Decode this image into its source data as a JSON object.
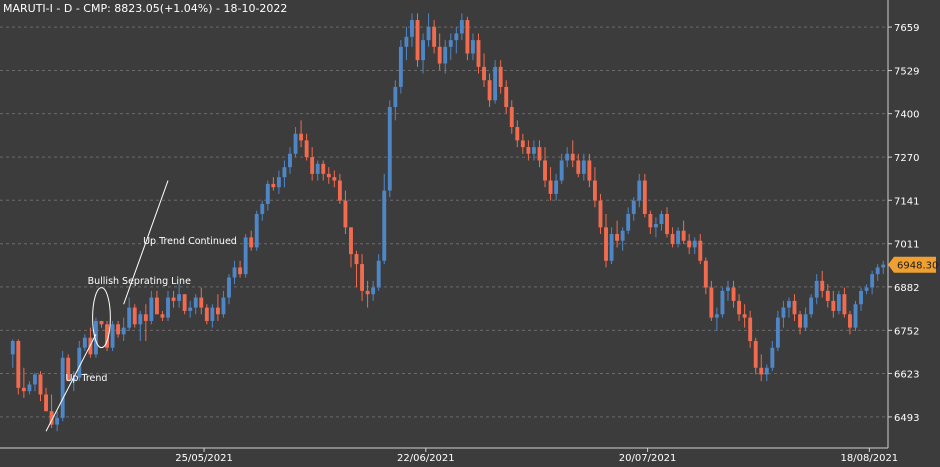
{
  "chart_data": {
    "type": "candlestick",
    "title": "MARUTI-I - D - CMP: 8823.05(+1.04%) - 18-10-2022",
    "ylim": [
      6400,
      7740
    ],
    "y_ticks": [
      6493,
      6623,
      6752,
      6882,
      7011,
      7141,
      7270,
      7400,
      7529,
      7659
    ],
    "x_tick_labels": [
      {
        "label": "25/05/2021",
        "index": 35
      },
      {
        "label": "22/06/2021",
        "index": 75
      },
      {
        "label": "20/07/2021",
        "index": 115
      },
      {
        "label": "18/08/2021",
        "index": 155
      }
    ],
    "current_price_label": "6948.30",
    "current_price": 6948.3,
    "grid": "horizontal-dashed",
    "colors": {
      "background": "#3c3c3c",
      "up": "#4f86c6",
      "down": "#f26b4f",
      "grid": "#6a6a6a",
      "text": "#ffffff",
      "price_tag": "#f0a030",
      "annotation": "#ffffff"
    },
    "candles": [
      [
        6680,
        6725,
        6640,
        6720
      ],
      [
        6720,
        6725,
        6560,
        6580
      ],
      [
        6580,
        6640,
        6550,
        6570
      ],
      [
        6570,
        6600,
        6560,
        6590
      ],
      [
        6590,
        6625,
        6570,
        6620
      ],
      [
        6620,
        6630,
        6540,
        6560
      ],
      [
        6560,
        6580,
        6510,
        6510
      ],
      [
        6510,
        6560,
        6460,
        6470
      ],
      [
        6470,
        6510,
        6450,
        6490
      ],
      [
        6490,
        6690,
        6480,
        6670
      ],
      [
        6670,
        6680,
        6600,
        6600
      ],
      [
        6600,
        6630,
        6570,
        6610
      ],
      [
        6610,
        6720,
        6600,
        6700
      ],
      [
        6700,
        6740,
        6690,
        6730
      ],
      [
        6730,
        6760,
        6670,
        6680
      ],
      [
        6680,
        6790,
        6670,
        6780
      ],
      [
        6780,
        6780,
        6760,
        6770
      ],
      [
        6770,
        6780,
        6690,
        6700
      ],
      [
        6700,
        6780,
        6690,
        6770
      ],
      [
        6770,
        6780,
        6730,
        6740
      ],
      [
        6740,
        6790,
        6720,
        6760
      ],
      [
        6760,
        6850,
        6750,
        6820
      ],
      [
        6820,
        6830,
        6760,
        6770
      ],
      [
        6770,
        6810,
        6720,
        6800
      ],
      [
        6800,
        6830,
        6720,
        6780
      ],
      [
        6780,
        6870,
        6770,
        6850
      ],
      [
        6850,
        6870,
        6800,
        6800
      ],
      [
        6800,
        6810,
        6780,
        6790
      ],
      [
        6790,
        6870,
        6780,
        6850
      ],
      [
        6850,
        6870,
        6820,
        6840
      ],
      [
        6840,
        6890,
        6820,
        6860
      ],
      [
        6860,
        6860,
        6800,
        6810
      ],
      [
        6810,
        6840,
        6790,
        6820
      ],
      [
        6820,
        6860,
        6800,
        6850
      ],
      [
        6850,
        6880,
        6800,
        6820
      ],
      [
        6820,
        6830,
        6770,
        6780
      ],
      [
        6780,
        6830,
        6760,
        6820
      ],
      [
        6820,
        6860,
        6780,
        6800
      ],
      [
        6800,
        6870,
        6790,
        6850
      ],
      [
        6850,
        6920,
        6830,
        6910
      ],
      [
        6910,
        6960,
        6890,
        6940
      ],
      [
        6940,
        6960,
        6910,
        6920
      ],
      [
        6920,
        7040,
        6910,
        7030
      ],
      [
        7030,
        7050,
        6990,
        7000
      ],
      [
        7000,
        7110,
        6990,
        7100
      ],
      [
        7100,
        7140,
        7080,
        7130
      ],
      [
        7130,
        7200,
        7110,
        7190
      ],
      [
        7190,
        7210,
        7170,
        7180
      ],
      [
        7180,
        7230,
        7160,
        7210
      ],
      [
        7210,
        7260,
        7180,
        7240
      ],
      [
        7240,
        7300,
        7220,
        7280
      ],
      [
        7280,
        7360,
        7270,
        7340
      ],
      [
        7340,
        7380,
        7300,
        7320
      ],
      [
        7320,
        7340,
        7260,
        7270
      ],
      [
        7270,
        7300,
        7200,
        7220
      ],
      [
        7220,
        7260,
        7200,
        7250
      ],
      [
        7250,
        7260,
        7200,
        7220
      ],
      [
        7220,
        7240,
        7190,
        7210
      ],
      [
        7210,
        7230,
        7180,
        7200
      ],
      [
        7200,
        7220,
        7130,
        7140
      ],
      [
        7140,
        7170,
        7040,
        7060
      ],
      [
        7060,
        7060,
        6940,
        6980
      ],
      [
        6980,
        6990,
        6880,
        6950
      ],
      [
        6950,
        6980,
        6840,
        6870
      ],
      [
        6870,
        6900,
        6820,
        6860
      ],
      [
        6860,
        6900,
        6840,
        6880
      ],
      [
        6880,
        6980,
        6870,
        6960
      ],
      [
        6960,
        7220,
        6950,
        7170
      ],
      [
        7170,
        7440,
        7150,
        7420
      ],
      [
        7420,
        7500,
        7380,
        7480
      ],
      [
        7480,
        7620,
        7460,
        7600
      ],
      [
        7600,
        7660,
        7560,
        7630
      ],
      [
        7630,
        7700,
        7600,
        7680
      ],
      [
        7680,
        7700,
        7540,
        7560
      ],
      [
        7560,
        7640,
        7520,
        7620
      ],
      [
        7620,
        7700,
        7600,
        7660
      ],
      [
        7660,
        7680,
        7580,
        7600
      ],
      [
        7600,
        7640,
        7530,
        7550
      ],
      [
        7550,
        7620,
        7520,
        7600
      ],
      [
        7600,
        7640,
        7560,
        7620
      ],
      [
        7620,
        7660,
        7580,
        7640
      ],
      [
        7640,
        7700,
        7620,
        7680
      ],
      [
        7680,
        7690,
        7560,
        7580
      ],
      [
        7580,
        7640,
        7560,
        7620
      ],
      [
        7620,
        7640,
        7520,
        7540
      ],
      [
        7540,
        7580,
        7480,
        7500
      ],
      [
        7500,
        7520,
        7420,
        7440
      ],
      [
        7440,
        7560,
        7430,
        7540
      ],
      [
        7540,
        7560,
        7460,
        7480
      ],
      [
        7480,
        7500,
        7400,
        7420
      ],
      [
        7420,
        7440,
        7340,
        7360
      ],
      [
        7360,
        7380,
        7300,
        7320
      ],
      [
        7320,
        7340,
        7280,
        7300
      ],
      [
        7300,
        7320,
        7260,
        7280
      ],
      [
        7280,
        7320,
        7260,
        7300
      ],
      [
        7300,
        7320,
        7240,
        7260
      ],
      [
        7260,
        7300,
        7180,
        7200
      ],
      [
        7200,
        7240,
        7140,
        7160
      ],
      [
        7160,
        7220,
        7140,
        7200
      ],
      [
        7200,
        7280,
        7190,
        7260
      ],
      [
        7260,
        7300,
        7240,
        7280
      ],
      [
        7280,
        7320,
        7240,
        7260
      ],
      [
        7260,
        7280,
        7210,
        7220
      ],
      [
        7220,
        7280,
        7200,
        7260
      ],
      [
        7260,
        7280,
        7180,
        7200
      ],
      [
        7200,
        7240,
        7120,
        7140
      ],
      [
        7140,
        7160,
        7040,
        7060
      ],
      [
        7060,
        7100,
        6940,
        6960
      ],
      [
        6960,
        7060,
        6950,
        7040
      ],
      [
        7040,
        7080,
        7000,
        7020
      ],
      [
        7020,
        7060,
        6990,
        7050
      ],
      [
        7050,
        7120,
        7040,
        7100
      ],
      [
        7100,
        7150,
        7080,
        7140
      ],
      [
        7140,
        7220,
        7120,
        7200
      ],
      [
        7200,
        7220,
        7090,
        7100
      ],
      [
        7100,
        7110,
        7040,
        7060
      ],
      [
        7060,
        7090,
        7030,
        7070
      ],
      [
        7070,
        7110,
        7050,
        7100
      ],
      [
        7100,
        7120,
        7030,
        7040
      ],
      [
        7040,
        7060,
        7000,
        7010
      ],
      [
        7010,
        7060,
        7000,
        7050
      ],
      [
        7050,
        7080,
        7010,
        7020
      ],
      [
        7020,
        7040,
        6980,
        7000
      ],
      [
        7000,
        7030,
        6980,
        7020
      ],
      [
        7020,
        7040,
        6950,
        6960
      ],
      [
        6960,
        6970,
        6860,
        6880
      ],
      [
        6880,
        6900,
        6780,
        6790
      ],
      [
        6790,
        6820,
        6750,
        6800
      ],
      [
        6800,
        6880,
        6790,
        6870
      ],
      [
        6870,
        6900,
        6840,
        6880
      ],
      [
        6880,
        6900,
        6820,
        6840
      ],
      [
        6840,
        6860,
        6780,
        6800
      ],
      [
        6800,
        6830,
        6760,
        6790
      ],
      [
        6790,
        6810,
        6700,
        6720
      ],
      [
        6720,
        6730,
        6620,
        6640
      ],
      [
        6640,
        6680,
        6600,
        6620
      ],
      [
        6620,
        6650,
        6600,
        6640
      ],
      [
        6640,
        6720,
        6630,
        6700
      ],
      [
        6700,
        6810,
        6690,
        6790
      ],
      [
        6790,
        6840,
        6760,
        6820
      ],
      [
        6820,
        6850,
        6790,
        6840
      ],
      [
        6840,
        6860,
        6780,
        6800
      ],
      [
        6800,
        6810,
        6740,
        6760
      ],
      [
        6760,
        6820,
        6750,
        6800
      ],
      [
        6800,
        6860,
        6790,
        6850
      ],
      [
        6850,
        6920,
        6830,
        6900
      ],
      [
        6900,
        6930,
        6850,
        6870
      ],
      [
        6870,
        6890,
        6820,
        6840
      ],
      [
        6840,
        6870,
        6790,
        6810
      ],
      [
        6810,
        6870,
        6800,
        6860
      ],
      [
        6860,
        6880,
        6790,
        6800
      ],
      [
        6800,
        6810,
        6740,
        6760
      ],
      [
        6760,
        6840,
        6750,
        6830
      ],
      [
        6830,
        6880,
        6810,
        6870
      ],
      [
        6870,
        6890,
        6860,
        6880
      ],
      [
        6880,
        6930,
        6860,
        6920
      ],
      [
        6920,
        6950,
        6900,
        6940
      ],
      [
        6940,
        6960,
        6920,
        6948.3
      ]
    ],
    "annotations": [
      {
        "label": "Up Trend",
        "kind": "trendline",
        "i1": 6,
        "v1": 6450,
        "i2": 15,
        "v2": 6740,
        "text_i": 10,
        "text_v": 6600
      },
      {
        "label": "Bullish Seprating Line",
        "kind": "ellipse",
        "ci": 16,
        "cv": 6790,
        "text_i": 14,
        "text_v": 6890
      },
      {
        "label": "Up Trend Continued",
        "kind": "trendline",
        "i1": 20,
        "v1": 6830,
        "i2": 28,
        "v2": 7200,
        "text_i": 24,
        "text_v": 7010
      }
    ]
  }
}
